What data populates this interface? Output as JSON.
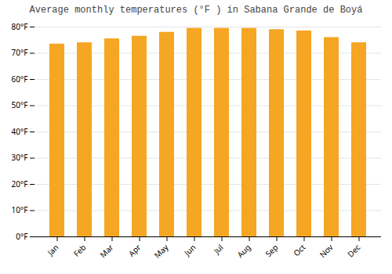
{
  "chart_data": {
    "type": "bar",
    "title": "Average monthly temperatures (°F ) in Sabana Grande de Boyá",
    "categories": [
      "Jan",
      "Feb",
      "Mar",
      "Apr",
      "May",
      "Jun",
      "Jul",
      "Aug",
      "Sep",
      "Oct",
      "Nov",
      "Dec"
    ],
    "values": [
      73.5,
      74.0,
      75.5,
      76.5,
      78.0,
      79.5,
      79.5,
      79.5,
      79.0,
      78.5,
      76.0,
      74.0
    ],
    "color": "#F5A623",
    "ylim": [
      0,
      80
    ],
    "yticks": [
      {
        "value": 0,
        "label": "0°F"
      },
      {
        "value": 10,
        "label": "10°F"
      },
      {
        "value": 20,
        "label": "20°F"
      },
      {
        "value": 30,
        "label": "30°F"
      },
      {
        "value": 40,
        "label": "40°F"
      },
      {
        "value": 50,
        "label": "50°F"
      },
      {
        "value": 60,
        "label": "60°F"
      },
      {
        "value": 70,
        "label": "70°F"
      },
      {
        "value": 80,
        "label": "80°F"
      }
    ],
    "grid": true
  }
}
